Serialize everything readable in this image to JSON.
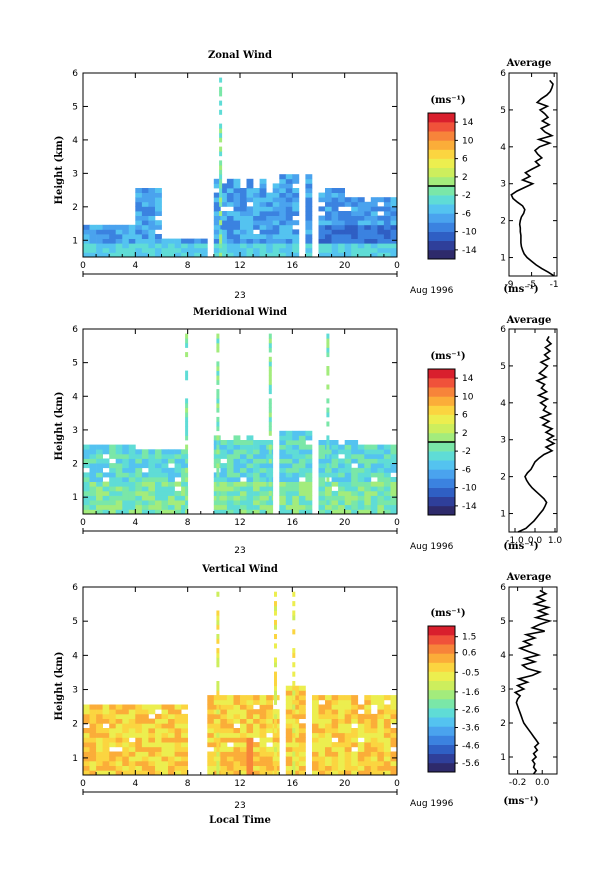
{
  "chart_data": [
    {
      "type": "heatmap",
      "title": "Zonal Wind",
      "ylabel": "Height (km)",
      "ylim": [
        0.5,
        6
      ],
      "yticks": [
        "1",
        "2",
        "3",
        "4",
        "5",
        "6"
      ],
      "xlim": [
        0,
        24
      ],
      "xticks": [
        "0",
        "4",
        "8",
        "12",
        "16",
        "20",
        "0"
      ],
      "date_label": "23",
      "date_suffix": "Aug 1996",
      "colorbar": {
        "unit": "(ms⁻¹)",
        "range": [
          -16,
          16
        ],
        "ticks": [
          "14",
          "10",
          "6",
          "2",
          "-2",
          "-6",
          "-10",
          "-14"
        ],
        "marker": 0
      },
      "profile": {
        "title": "Average",
        "xlabel": "(ms⁻¹)",
        "xlim": [
          -9,
          -0.5
        ],
        "xticks": [
          "-9",
          "-5",
          "-1"
        ],
        "heights": [
          0.5,
          0.6,
          0.7,
          0.8,
          0.9,
          1.0,
          1.1,
          1.2,
          1.3,
          1.4,
          1.5,
          1.6,
          1.7,
          1.8,
          1.9,
          2.0,
          2.1,
          2.2,
          2.3,
          2.4,
          2.5,
          2.6,
          2.7,
          2.8,
          2.9,
          3.0,
          3.1,
          3.2,
          3.3,
          3.4,
          3.5,
          3.6,
          3.7,
          3.8,
          3.9,
          4.0,
          4.1,
          4.2,
          4.3,
          4.4,
          4.5,
          4.6,
          4.7,
          4.8,
          4.9,
          5.0,
          5.1,
          5.2,
          5.3,
          5.4,
          5.5,
          5.6,
          5.7,
          5.8
        ],
        "values": [
          -1.0,
          -2.0,
          -3.2,
          -4.2,
          -5.0,
          -5.8,
          -6.3,
          -6.6,
          -6.8,
          -6.9,
          -6.9,
          -6.9,
          -7.0,
          -7.0,
          -7.1,
          -7.0,
          -6.8,
          -6.4,
          -6.2,
          -6.6,
          -7.5,
          -8.3,
          -8.6,
          -7.6,
          -6.2,
          -4.8,
          -6.6,
          -5.3,
          -6.1,
          -4.9,
          -3.6,
          -4.3,
          -3.2,
          -3.9,
          -4.4,
          -3.6,
          -1.8,
          -3.7,
          -1.4,
          -2.6,
          -3.3,
          -1.9,
          -3.1,
          -2.1,
          -2.7,
          -3.5,
          -2.2,
          -4.0,
          -3.3,
          -2.3,
          -1.7,
          -1.4,
          -1.2,
          -1.8
        ]
      }
    },
    {
      "type": "heatmap",
      "title": "Meridional Wind",
      "ylabel": "Height (km)",
      "ylim": [
        0.5,
        6
      ],
      "yticks": [
        "1",
        "2",
        "3",
        "4",
        "5",
        "6"
      ],
      "xlim": [
        0,
        24
      ],
      "xticks": [
        "0",
        "4",
        "8",
        "12",
        "16",
        "20",
        "0"
      ],
      "date_label": "23",
      "date_suffix": "Aug 1996",
      "colorbar": {
        "unit": "(ms⁻¹)",
        "range": [
          -16,
          16
        ],
        "ticks": [
          "14",
          "10",
          "6",
          "2",
          "-2",
          "-6",
          "-10",
          "-14"
        ],
        "marker": 0
      },
      "profile": {
        "title": "Average",
        "xlabel": "(ms⁻¹)",
        "xlim": [
          -1.3,
          1.1
        ],
        "xticks": [
          "-1.0",
          "0.0",
          "1.0"
        ],
        "heights": [
          0.5,
          0.6,
          0.7,
          0.8,
          0.9,
          1.0,
          1.1,
          1.2,
          1.3,
          1.4,
          1.5,
          1.6,
          1.7,
          1.8,
          1.9,
          2.0,
          2.1,
          2.2,
          2.3,
          2.4,
          2.5,
          2.6,
          2.7,
          2.8,
          2.9,
          3.0,
          3.1,
          3.2,
          3.3,
          3.4,
          3.5,
          3.6,
          3.7,
          3.8,
          3.9,
          4.0,
          4.1,
          4.2,
          4.3,
          4.4,
          4.5,
          4.6,
          4.7,
          4.8,
          4.9,
          5.0,
          5.1,
          5.2,
          5.3,
          5.4,
          5.5,
          5.6,
          5.7,
          5.8
        ],
        "values": [
          -0.85,
          -0.45,
          -0.25,
          -0.05,
          0.1,
          0.25,
          0.4,
          0.5,
          0.58,
          0.45,
          0.25,
          0.05,
          -0.15,
          -0.3,
          -0.42,
          -0.5,
          -0.38,
          -0.2,
          -0.1,
          0.0,
          0.2,
          0.45,
          0.85,
          0.55,
          0.95,
          0.6,
          0.92,
          0.55,
          0.85,
          0.4,
          0.7,
          0.3,
          0.78,
          0.42,
          0.55,
          0.28,
          0.62,
          0.18,
          0.58,
          0.32,
          0.48,
          0.1,
          0.55,
          0.22,
          0.45,
          0.62,
          0.3,
          0.7,
          0.48,
          0.75,
          0.52,
          0.8,
          0.6,
          0.7
        ]
      }
    },
    {
      "type": "heatmap",
      "title": "Vertical Wind",
      "ylabel": "Height (km)",
      "ylim": [
        0.5,
        6
      ],
      "yticks": [
        "1",
        "2",
        "3",
        "4",
        "5",
        "6"
      ],
      "xlim": [
        0,
        24
      ],
      "xticks": [
        "0",
        "4",
        "8",
        "12",
        "16",
        "20",
        "0"
      ],
      "date_label": "23",
      "date_suffix": "Aug 1996",
      "xlabel": "Local Time",
      "colorbar": {
        "unit": "(ms⁻¹)",
        "range": [
          -6.1,
          2.1
        ],
        "ticks": [
          "1.5",
          "0.6",
          "-0.5",
          "-1.6",
          "-2.6",
          "-3.6",
          "-4.6",
          "-5.6"
        ],
        "marker": null
      },
      "profile": {
        "title": "Average",
        "xlabel": "(ms⁻¹)",
        "xlim": [
          -0.27,
          0.12
        ],
        "xticks": [
          "-0.2",
          "0.0"
        ],
        "heights": [
          0.5,
          0.6,
          0.7,
          0.8,
          0.9,
          1.0,
          1.1,
          1.2,
          1.3,
          1.4,
          1.5,
          1.6,
          1.7,
          1.8,
          1.9,
          2.0,
          2.1,
          2.2,
          2.3,
          2.4,
          2.5,
          2.6,
          2.7,
          2.8,
          2.9,
          3.0,
          3.1,
          3.2,
          3.3,
          3.4,
          3.5,
          3.6,
          3.7,
          3.8,
          3.9,
          4.0,
          4.1,
          4.2,
          4.3,
          4.4,
          4.5,
          4.6,
          4.7,
          4.8,
          4.9,
          5.0,
          5.1,
          5.2,
          5.3,
          5.4,
          5.5,
          5.6,
          5.7,
          5.8,
          5.9
        ],
        "values": [
          -0.07,
          -0.05,
          -0.07,
          -0.06,
          -0.08,
          -0.05,
          -0.07,
          -0.04,
          -0.06,
          -0.03,
          -0.05,
          -0.07,
          -0.09,
          -0.11,
          -0.13,
          -0.15,
          -0.16,
          -0.17,
          -0.18,
          -0.19,
          -0.2,
          -0.21,
          -0.2,
          -0.18,
          -0.22,
          -0.15,
          -0.2,
          -0.12,
          -0.19,
          -0.08,
          -0.02,
          -0.12,
          -0.16,
          -0.06,
          -0.14,
          -0.03,
          -0.11,
          -0.18,
          -0.09,
          -0.15,
          -0.06,
          -0.13,
          0.02,
          -0.08,
          -0.02,
          0.06,
          -0.05,
          0.04,
          -0.03,
          0.05,
          -0.06,
          0.02,
          -0.04,
          0.03,
          -0.02
        ]
      }
    }
  ]
}
